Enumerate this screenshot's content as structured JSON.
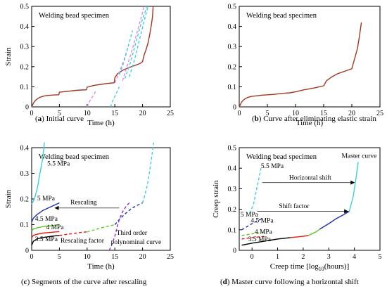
{
  "chart_data": [
    {
      "id": "a",
      "type": "line",
      "caption_letter": "a",
      "caption_rest": " Initial curve",
      "title": "Welding bead specimen",
      "xlabel": "Time (h)",
      "ylabel": "Strain",
      "xlim": [
        0,
        25
      ],
      "ylim": [
        0,
        0.5
      ],
      "xticks": [
        0,
        5,
        10,
        15,
        20,
        25
      ],
      "yticks": [
        0,
        0.1,
        0.2,
        0.3,
        0.4,
        0.5
      ],
      "series": [
        {
          "color": "#a0381e",
          "dash": false,
          "x": [
            0,
            0.3,
            0.6,
            1.0,
            1.5,
            2.2,
            3.0,
            4.0,
            4.9,
            5.0,
            6,
            7,
            8,
            9,
            9.9,
            10.0,
            10.8,
            11.5,
            12.5,
            13.5,
            14.9,
            15.0,
            15.5,
            16.5,
            17.5,
            18.5,
            19.5,
            20.0,
            20.3,
            20.7,
            21.0,
            21.3,
            21.6,
            21.8,
            21.9
          ],
          "y": [
            0,
            0.018,
            0.03,
            0.04,
            0.048,
            0.054,
            0.057,
            0.059,
            0.06,
            0.073,
            0.076,
            0.079,
            0.082,
            0.084,
            0.085,
            0.098,
            0.104,
            0.108,
            0.112,
            0.116,
            0.12,
            0.145,
            0.165,
            0.183,
            0.195,
            0.205,
            0.215,
            0.225,
            0.26,
            0.29,
            0.32,
            0.36,
            0.41,
            0.45,
            0.5
          ]
        },
        {
          "color": "#ee82ee",
          "dash": true,
          "x": [
            10.0,
            10.6,
            11.2,
            11.6
          ],
          "y": [
            0.0,
            0.035,
            0.06,
            0.08
          ]
        },
        {
          "color": "#3ad0e0",
          "dash": true,
          "x": [
            14.2,
            14.7,
            15.3,
            15.8
          ],
          "y": [
            0.0,
            0.035,
            0.07,
            0.1
          ]
        },
        {
          "color": "#ee82ee",
          "dash": true,
          "x": [
            15.0,
            15.8,
            16.6,
            17.4
          ],
          "y": [
            0.12,
            0.17,
            0.23,
            0.3
          ]
        },
        {
          "color": "#3ad0e0",
          "dash": true,
          "x": [
            15.8,
            16.6,
            17.4,
            18.2
          ],
          "y": [
            0.16,
            0.22,
            0.3,
            0.38
          ]
        },
        {
          "color": "#ee82ee",
          "dash": true,
          "x": [
            16.4,
            17.3,
            18.3,
            19.3,
            20.3
          ],
          "y": [
            0.13,
            0.21,
            0.3,
            0.4,
            0.5
          ]
        },
        {
          "color": "#3ad0e0",
          "dash": true,
          "x": [
            16.8,
            17.8,
            18.8,
            19.8,
            20.8
          ],
          "y": [
            0.14,
            0.22,
            0.32,
            0.42,
            0.5
          ]
        },
        {
          "color": "#3ad0e0",
          "dash": true,
          "x": [
            17.6,
            18.6,
            19.6,
            20.4,
            21.0
          ],
          "y": [
            0.15,
            0.24,
            0.35,
            0.44,
            0.5
          ]
        }
      ]
    },
    {
      "id": "b",
      "type": "line",
      "caption_letter": "b",
      "caption_rest": " Curve after eliminating elastic strain",
      "title": "Welding bead specimen",
      "xlabel": "Time (h)",
      "ylabel": "",
      "xlim": [
        0,
        25
      ],
      "ylim": [
        0,
        0.5
      ],
      "xticks": [
        0,
        5,
        10,
        15,
        20,
        25
      ],
      "yticks": [
        0,
        0.1,
        0.2,
        0.3,
        0.4,
        0.5
      ],
      "series": [
        {
          "color": "#a0381e",
          "dash": false,
          "x": [
            0,
            0.3,
            0.6,
            1.0,
            1.5,
            2.2,
            3.0,
            4.0,
            5.0,
            6,
            7,
            8,
            9,
            10.0,
            10.8,
            11.5,
            12.5,
            13.5,
            15.0,
            15.5,
            16.5,
            17.5,
            18.5,
            19.5,
            20.0,
            20.5,
            21.0,
            21.4,
            21.7
          ],
          "y": [
            0,
            0.018,
            0.03,
            0.04,
            0.047,
            0.052,
            0.055,
            0.058,
            0.06,
            0.062,
            0.065,
            0.068,
            0.07,
            0.075,
            0.08,
            0.085,
            0.09,
            0.095,
            0.105,
            0.13,
            0.15,
            0.165,
            0.175,
            0.185,
            0.19,
            0.24,
            0.29,
            0.36,
            0.42
          ]
        }
      ]
    },
    {
      "id": "c",
      "type": "line",
      "caption_letter": "c",
      "caption_rest": " Segments of the curve after rescaling",
      "title": "Welding bead specimen",
      "xlabel": "Time (h)",
      "ylabel": "Strain",
      "xlim": [
        0,
        25
      ],
      "ylim": [
        0,
        0.4
      ],
      "xticks": [
        0,
        5,
        10,
        15,
        20,
        25
      ],
      "yticks": [
        0,
        0.1,
        0.2,
        0.3,
        0.4
      ],
      "series": [
        {
          "name": "3.5 MPa",
          "color": "#000000",
          "dash": false,
          "x": [
            0,
            0.3,
            1,
            2,
            3,
            4,
            5
          ],
          "y": [
            0.02,
            0.035,
            0.045,
            0.05,
            0.053,
            0.056,
            0.058
          ]
        },
        {
          "name": "4 MPa",
          "color": "#e8190e",
          "dash": false,
          "x": [
            0,
            0.3,
            1,
            2,
            3,
            4,
            5
          ],
          "y": [
            0.05,
            0.058,
            0.063,
            0.067,
            0.069,
            0.071,
            0.073
          ]
        },
        {
          "name": "4.5 MPa",
          "color": "#5ac81e",
          "dash": false,
          "x": [
            0,
            0.3,
            1,
            2,
            3,
            4,
            5
          ],
          "y": [
            0.075,
            0.083,
            0.088,
            0.092,
            0.095,
            0.097,
            0.1
          ]
        },
        {
          "name": "5 MPa",
          "color": "#1a2fb0",
          "dash": false,
          "x": [
            0,
            0.3,
            1,
            2,
            3,
            4,
            5
          ],
          "y": [
            0.11,
            0.125,
            0.14,
            0.155,
            0.165,
            0.175,
            0.185
          ]
        },
        {
          "name": "5.5 MPa",
          "color": "#3ad0e0",
          "dash": false,
          "x": [
            0,
            0.5,
            1,
            1.5,
            2,
            2.3
          ],
          "y": [
            0.18,
            0.2,
            0.24,
            0.3,
            0.36,
            0.42
          ]
        },
        {
          "color": "#e8190e",
          "dash": true,
          "x": [
            5,
            6,
            7,
            8,
            9,
            10
          ],
          "y": [
            0.058,
            0.061,
            0.064,
            0.067,
            0.07,
            0.072
          ]
        },
        {
          "color": "#5ac81e",
          "dash": true,
          "x": [
            10,
            11,
            12,
            13,
            14,
            15
          ],
          "y": [
            0.072,
            0.078,
            0.084,
            0.09,
            0.095,
            0.1
          ]
        },
        {
          "color": "#1a2fb0",
          "dash": true,
          "x": [
            15,
            16,
            17,
            18,
            19,
            20
          ],
          "y": [
            0.1,
            0.125,
            0.145,
            0.163,
            0.175,
            0.185
          ]
        },
        {
          "color": "#3ad0e0",
          "dash": true,
          "x": [
            20,
            20.5,
            21,
            21.5,
            22
          ],
          "y": [
            0.185,
            0.22,
            0.27,
            0.34,
            0.42
          ]
        },
        {
          "color": "#8a2be2",
          "dash": true,
          "x": [
            14,
            14.3,
            14.6,
            15,
            15.4,
            15.8,
            16.4,
            17,
            17.6
          ],
          "y": [
            0.0,
            0.015,
            0.03,
            0.055,
            0.09,
            0.12,
            0.15,
            0.17,
            0.185
          ]
        }
      ],
      "annotations": {
        "rescaling": "Rescaling",
        "rescaling_factor": "Rescaling factor",
        "poly_line1": "Third order",
        "poly_line2": "polynominal curve"
      }
    },
    {
      "id": "d",
      "type": "line",
      "caption_letter": "d",
      "caption_rest": " Master curve following a horizontal shift",
      "title": "Welding bead specimen",
      "xlabel": "Creep time [log10(hours)]",
      "xlabel_pre": "Creep time [log",
      "xlabel_sub": "10",
      "xlabel_post": "(hours)]",
      "ylabel": "Creep strain",
      "xlim": [
        -0.5,
        5
      ],
      "ylim": [
        0,
        0.5
      ],
      "xticks": [
        0,
        1,
        2,
        3,
        4,
        5
      ],
      "yticks": [
        0,
        0.1,
        0.2,
        0.3,
        0.4,
        0.5
      ],
      "series": [
        {
          "name": "3.5 MPa",
          "color": "#000000",
          "dash": false,
          "x": [
            -0.4,
            0,
            0.5,
            1.0,
            1.5
          ],
          "y": [
            0.025,
            0.035,
            0.045,
            0.055,
            0.062
          ]
        },
        {
          "color": "#e8190e",
          "dash": false,
          "x": [
            1.5,
            2.0,
            2.2
          ],
          "y": [
            0.062,
            0.068,
            0.072
          ]
        },
        {
          "color": "#5ac81e",
          "dash": false,
          "x": [
            2.2,
            2.5,
            2.65
          ],
          "y": [
            0.072,
            0.09,
            0.103
          ]
        },
        {
          "color": "#1a2fb0",
          "dash": false,
          "x": [
            2.65,
            3.0,
            3.3,
            3.6,
            3.8
          ],
          "y": [
            0.103,
            0.13,
            0.155,
            0.175,
            0.19
          ]
        },
        {
          "color": "#3ad0e0",
          "dash": false,
          "x": [
            3.8,
            3.95,
            4.05,
            4.15
          ],
          "y": [
            0.19,
            0.26,
            0.34,
            0.43
          ]
        },
        {
          "name": "4 MPa",
          "color": "#e8190e",
          "dash": true,
          "x": [
            -0.4,
            0,
            0.5
          ],
          "y": [
            0.055,
            0.062,
            0.068
          ]
        },
        {
          "name": "4.5 MPa",
          "color": "#5ac81e",
          "dash": true,
          "x": [
            -0.4,
            0,
            0.5
          ],
          "y": [
            0.072,
            0.08,
            0.088
          ]
        },
        {
          "name": "5 MPa",
          "color": "#1a2fb0",
          "dash": true,
          "x": [
            -0.4,
            -0.2,
            0,
            0.2,
            0.4
          ],
          "y": [
            0.1,
            0.115,
            0.13,
            0.143,
            0.155
          ]
        },
        {
          "name": "5.5 MPa",
          "color": "#3ad0e0",
          "dash": true,
          "x": [
            -0.1,
            0.05,
            0.15,
            0.25,
            0.35
          ],
          "y": [
            0.18,
            0.22,
            0.28,
            0.34,
            0.4
          ]
        }
      ],
      "annotations": {
        "master_curve": "Master curve",
        "horizontal_shift": "Horizontal shift",
        "shift_factor": "Shift factor"
      }
    }
  ]
}
